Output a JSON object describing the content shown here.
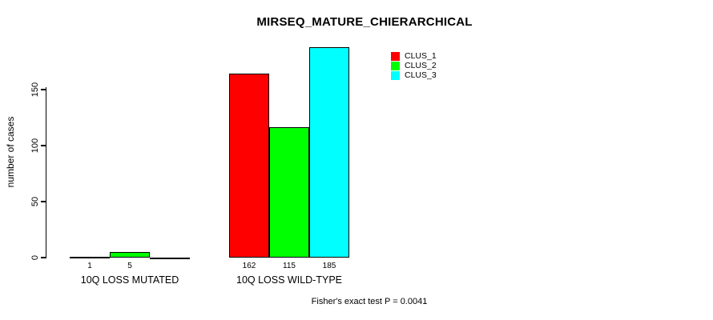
{
  "chart_data": {
    "type": "bar",
    "title": "MIRSEQ_MATURE_CHIERARCHICAL",
    "ylabel": "number of cases",
    "xlabel": "",
    "categories": [
      "10Q LOSS MUTATED",
      "10Q LOSS WILD-TYPE"
    ],
    "series": [
      {
        "name": "CLUS_1",
        "color": "#FF0000",
        "values": [
          1,
          162
        ]
      },
      {
        "name": "CLUS_2",
        "color": "#00FF00",
        "values": [
          5,
          115
        ]
      },
      {
        "name": "CLUS_3",
        "color": "#00FFFF",
        "values": [
          0,
          185
        ]
      }
    ],
    "bar_value_labels": [
      [
        "1",
        "5",
        ""
      ],
      [
        "162",
        "115",
        "185"
      ]
    ],
    "yticks": [
      0,
      50,
      100,
      150
    ],
    "ylim": [
      0,
      190
    ],
    "grid": false,
    "legend_position": "top-right",
    "annotation": "Fisher's exact test P = 0.0041",
    "colors": {
      "background": "#FFFFFF",
      "axis": "#000000",
      "text": "#000000"
    }
  }
}
